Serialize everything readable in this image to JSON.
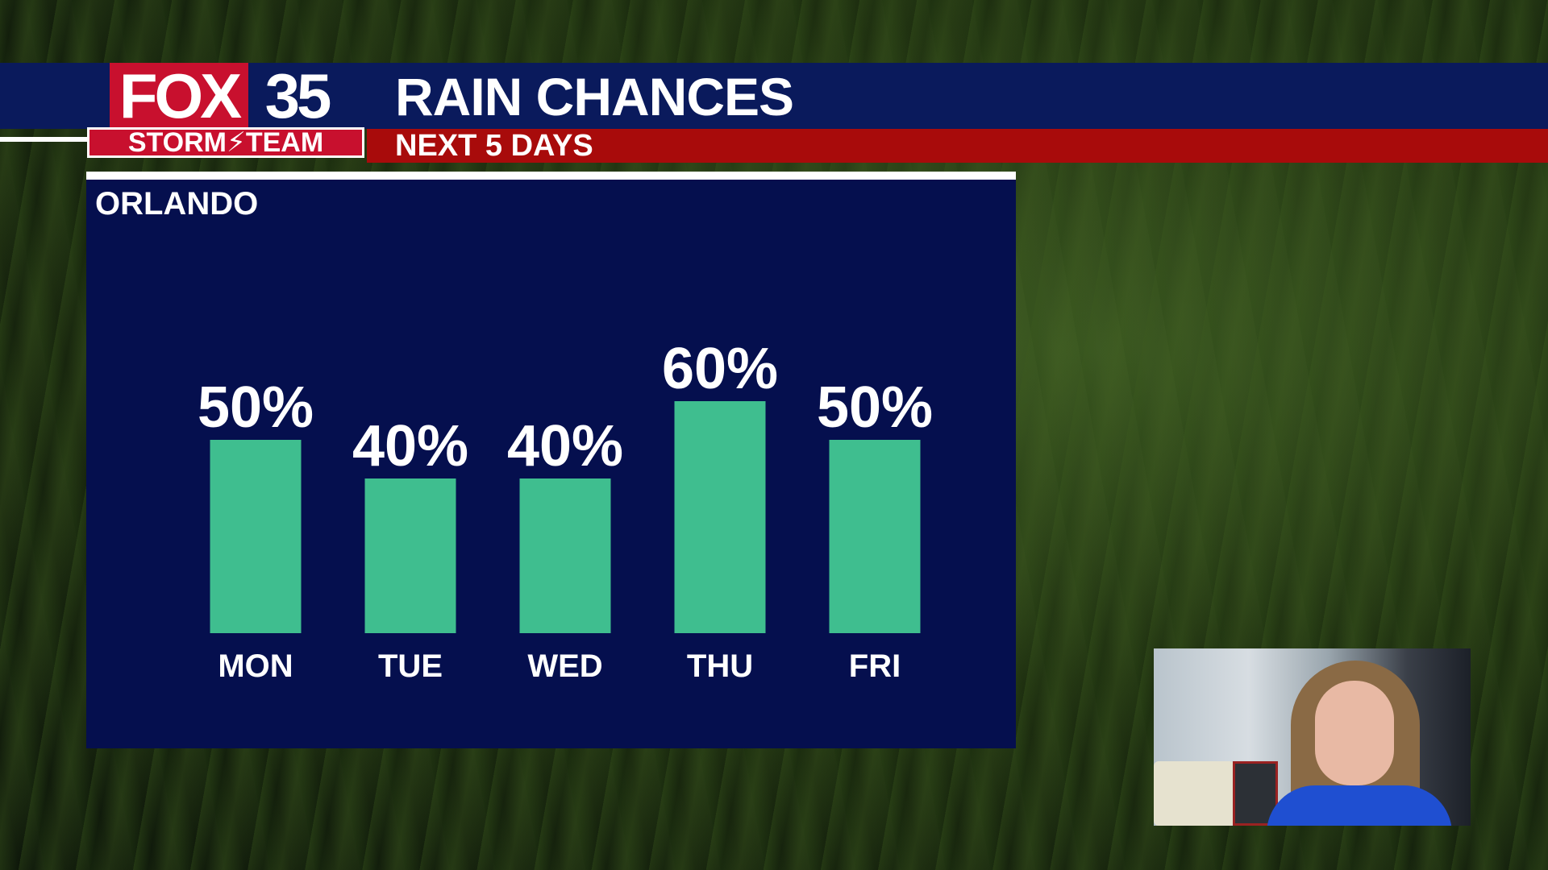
{
  "branding": {
    "logo_fox": "FOX",
    "logo_number": "35",
    "logo_team": "STORM⚡TEAM"
  },
  "header": {
    "title": "RAIN CHANCES",
    "subtitle": "NEXT 5 DAYS"
  },
  "panel": {
    "city": "ORLANDO"
  },
  "colors": {
    "bar": "#3fbe8f",
    "panel": "#050f4e",
    "header": "#0a1a5c",
    "subbar": "#a80b0b"
  },
  "chart_data": {
    "type": "bar",
    "categories": [
      "MON",
      "TUE",
      "WED",
      "THU",
      "FRI"
    ],
    "values": [
      50,
      40,
      40,
      60,
      50
    ],
    "value_labels": [
      "50%",
      "40%",
      "40%",
      "60%",
      "50%"
    ],
    "title": "RAIN CHANCES",
    "subtitle": "NEXT 5 DAYS",
    "ylim": [
      0,
      100
    ],
    "grid": false
  }
}
